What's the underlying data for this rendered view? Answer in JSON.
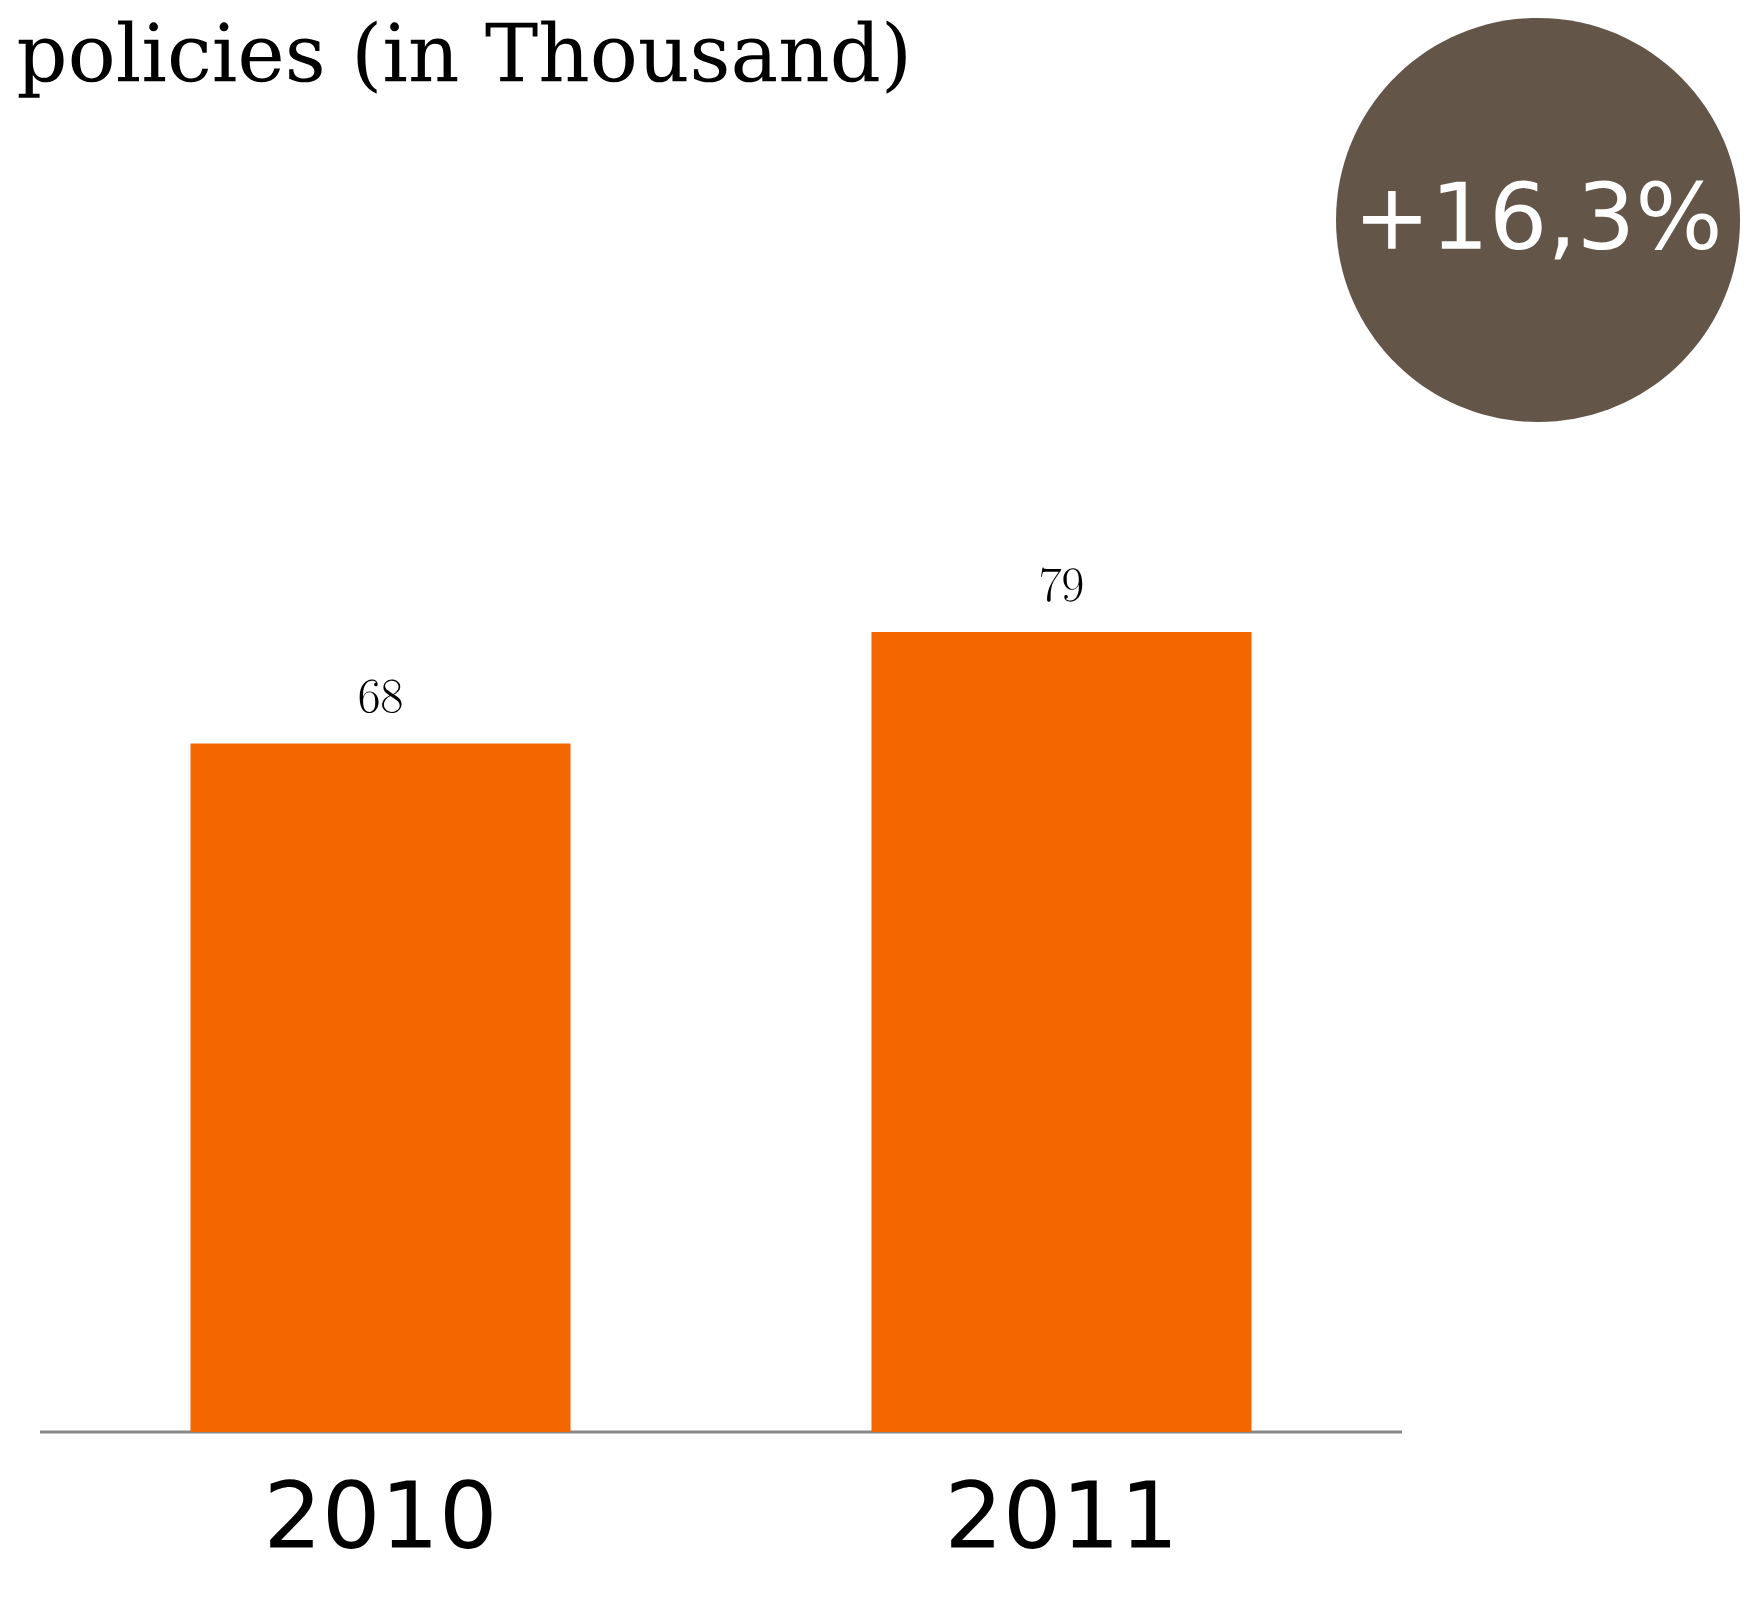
{
  "chart_data": {
    "type": "bar",
    "title": "policies (in Thousand)",
    "categories": [
      "2010",
      "2011"
    ],
    "values": [
      68,
      79
    ],
    "color": "#f36600",
    "data_labels": true,
    "annotations": [
      "+16,3%"
    ]
  }
}
